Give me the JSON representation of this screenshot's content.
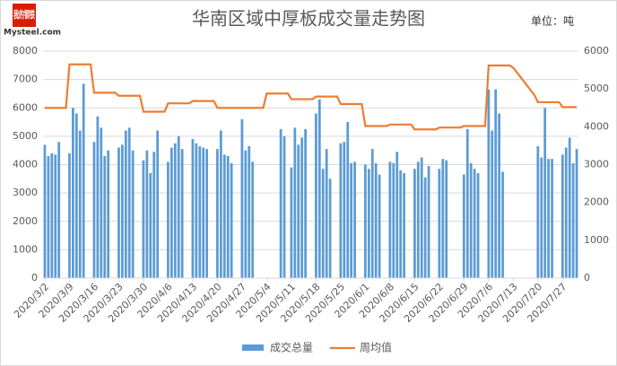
{
  "logo": {
    "cn": "我的钢铁",
    "en": "Mysteel.com"
  },
  "chart_data": {
    "type": "bar-line",
    "title": "华南区域中厚板成交量走势图",
    "unit": "单位：吨",
    "categories": [
      "2020/3/2",
      null,
      null,
      null,
      null,
      null,
      null,
      "2020/3/9",
      null,
      null,
      null,
      null,
      null,
      null,
      "2020/3/16",
      null,
      null,
      null,
      null,
      null,
      null,
      "2020/3/23",
      null,
      null,
      null,
      null,
      null,
      null,
      "2020/3/30",
      null,
      null,
      null,
      null,
      null,
      null,
      "2020/4/6",
      null,
      null,
      null,
      null,
      null,
      null,
      "2020/4/13",
      null,
      null,
      null,
      null,
      null,
      null,
      "2020/4/20",
      null,
      null,
      null,
      null,
      null,
      null,
      "2020/4/27",
      null,
      null,
      null,
      null,
      null,
      null,
      "2020/5/4",
      null,
      null,
      null,
      null,
      null,
      null,
      "2020/5/11",
      null,
      null,
      null,
      null,
      null,
      null,
      "2020/5/18",
      null,
      null,
      null,
      null,
      null,
      null,
      "2020/5/25",
      null,
      null,
      null,
      null,
      null,
      null,
      "2020/6/1",
      null,
      null,
      null,
      null,
      null,
      null,
      "2020/6/8",
      null,
      null,
      null,
      null,
      null,
      null,
      "2020/6/15",
      null,
      null,
      null,
      null,
      null,
      null,
      "2020/6/22",
      null,
      null,
      null,
      null,
      null,
      null,
      "2020/6/29",
      null,
      null,
      null,
      null,
      null,
      null,
      "2020/7/6",
      null,
      null,
      null,
      null,
      null,
      null,
      "2020/7/13",
      null,
      null,
      null,
      null,
      null,
      null,
      "2020/7/20",
      null,
      null,
      null,
      null,
      null,
      null,
      "2020/7/27",
      null,
      null,
      null,
      null
    ],
    "series": [
      {
        "name": "成交总量",
        "color": "#5b9bd5",
        "values": [
          4700,
          4300,
          4400,
          4350,
          4800,
          null,
          null,
          4400,
          6000,
          5800,
          5200,
          6850,
          null,
          null,
          4800,
          5700,
          5300,
          4300,
          4500,
          null,
          null,
          4600,
          4700,
          5200,
          5300,
          4500,
          null,
          null,
          4150,
          4500,
          3700,
          4450,
          5200,
          null,
          null,
          4100,
          4600,
          4750,
          5000,
          4550,
          null,
          null,
          4900,
          4750,
          4650,
          4600,
          4550,
          null,
          null,
          4550,
          5200,
          4350,
          4300,
          4050,
          null,
          null,
          5600,
          4500,
          4650,
          4100,
          null,
          null,
          null,
          null,
          null,
          null,
          null,
          5250,
          5000,
          null,
          3900,
          5300,
          4700,
          4950,
          5250,
          null,
          null,
          5800,
          6300,
          3850,
          4550,
          3500,
          null,
          null,
          4750,
          4800,
          5500,
          4050,
          4100,
          null,
          null,
          4000,
          3850,
          4550,
          4050,
          3650,
          null,
          null,
          4100,
          4050,
          4450,
          3800,
          3700,
          null,
          null,
          3850,
          4100,
          4250,
          3550,
          3950,
          null,
          null,
          3850,
          4200,
          4150,
          null,
          null,
          null,
          null,
          3650,
          5250,
          4050,
          3850,
          3700,
          null,
          null,
          6650,
          5200,
          6650,
          5800,
          3750,
          null,
          null,
          null,
          null,
          null,
          null,
          null,
          null,
          null,
          4650,
          4250,
          6000,
          4200,
          4200,
          null,
          null,
          4350,
          4600,
          4950,
          4050,
          4550
        ]
      },
      {
        "name": "周均值",
        "color": "#ed7d31",
        "axis": "y2",
        "values": [
          4500,
          4500,
          4500,
          4500,
          4500,
          4500,
          4500,
          5650,
          5650,
          5650,
          5650,
          5650,
          5650,
          5650,
          4900,
          4900,
          4900,
          4900,
          4900,
          4900,
          4900,
          4820,
          4820,
          4820,
          4820,
          4820,
          4820,
          4820,
          4400,
          4400,
          4400,
          4400,
          4400,
          4400,
          4400,
          4620,
          4620,
          4620,
          4620,
          4620,
          4620,
          4620,
          4680,
          4680,
          4680,
          4680,
          4680,
          4680,
          4680,
          4500,
          4500,
          4500,
          4500,
          4500,
          4500,
          4500,
          4500,
          4500,
          4500,
          4500,
          4500,
          4500,
          4500,
          4880,
          4880,
          4880,
          4880,
          4880,
          4880,
          4880,
          4730,
          4730,
          4730,
          4730,
          4730,
          4730,
          4730,
          4800,
          4800,
          4800,
          4800,
          4800,
          4800,
          4800,
          4600,
          4600,
          4600,
          4600,
          4600,
          4600,
          4600,
          4020,
          4020,
          4020,
          4020,
          4020,
          4020,
          4020,
          4060,
          4060,
          4060,
          4060,
          4060,
          4060,
          4060,
          3930,
          3930,
          3930,
          3930,
          3930,
          3930,
          3930,
          3980,
          3980,
          3980,
          3980,
          3980,
          3980,
          3980,
          4020,
          4020,
          4020,
          4020,
          4020,
          4020,
          4020,
          5620,
          5620,
          5620,
          5620,
          5620,
          5620,
          5620,
          5560,
          5440,
          5320,
          5200,
          5080,
          4960,
          4840,
          4650,
          4650,
          4650,
          4650,
          4650,
          4650,
          4650,
          4520,
          4520,
          4520,
          4520,
          4520
        ]
      }
    ],
    "ylim": [
      0,
      8000
    ],
    "yticks": [
      0,
      1000,
      2000,
      3000,
      4000,
      5000,
      6000,
      7000,
      8000
    ],
    "y2lim": [
      0,
      6000
    ],
    "y2ticks": [
      0,
      1000,
      2000,
      3000,
      4000,
      5000,
      6000
    ],
    "legend": "bottom"
  }
}
